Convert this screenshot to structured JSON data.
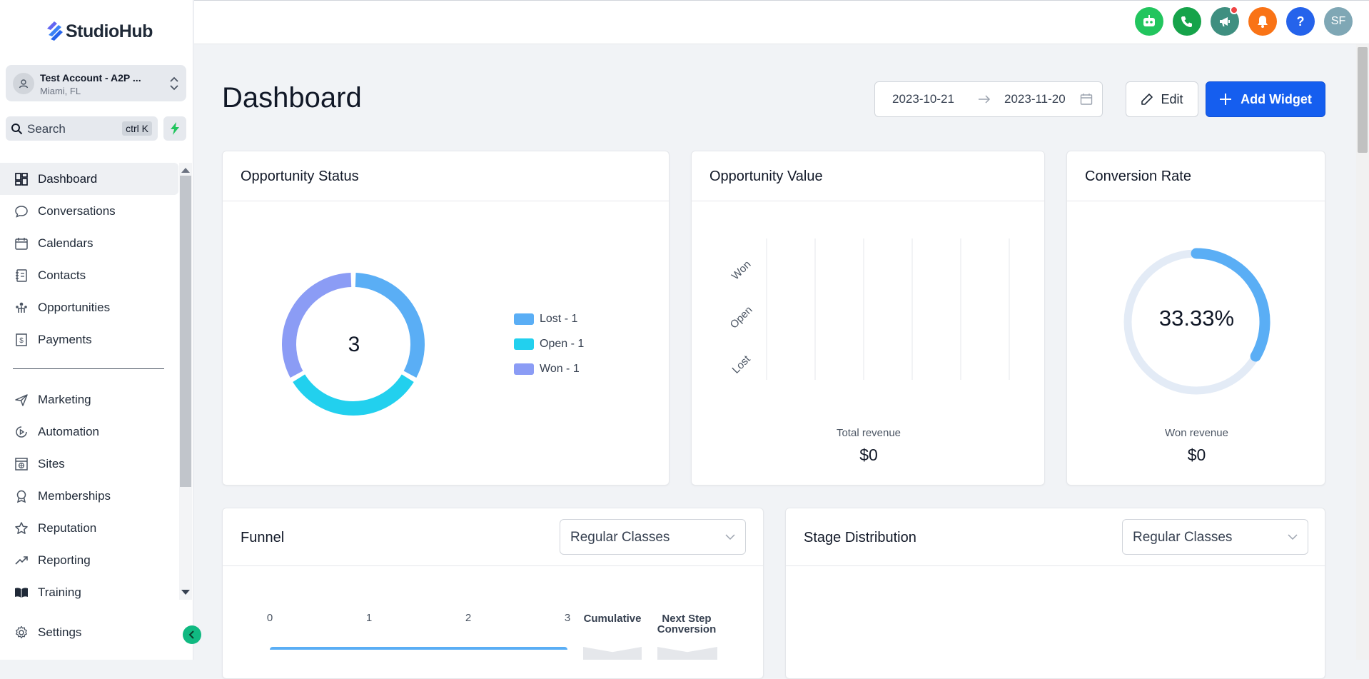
{
  "app": {
    "name": "StudioHub"
  },
  "account": {
    "name": "Test Account - A2P ...",
    "location": "Miami, FL"
  },
  "search": {
    "placeholder": "Search",
    "shortcut": "ctrl K"
  },
  "sidebar": {
    "items_top": [
      {
        "label": "Dashboard",
        "icon": "dashboard-icon",
        "active": true
      },
      {
        "label": "Conversations",
        "icon": "chat-bubble-icon"
      },
      {
        "label": "Calendars",
        "icon": "calendar-icon"
      },
      {
        "label": "Contacts",
        "icon": "contacts-book-icon"
      },
      {
        "label": "Opportunities",
        "icon": "opportunities-icon"
      },
      {
        "label": "Payments",
        "icon": "dollar-document-icon"
      }
    ],
    "items_bottom": [
      {
        "label": "Marketing",
        "icon": "send-icon"
      },
      {
        "label": "Automation",
        "icon": "automation-icon"
      },
      {
        "label": "Sites",
        "icon": "globe-window-icon"
      },
      {
        "label": "Memberships",
        "icon": "badge-icon"
      },
      {
        "label": "Reputation",
        "icon": "star-icon"
      },
      {
        "label": "Reporting",
        "icon": "trend-line-icon"
      },
      {
        "label": "Training",
        "icon": "book-icon"
      }
    ],
    "settings": {
      "label": "Settings",
      "icon": "gear-icon"
    }
  },
  "topbar": {
    "icons": [
      {
        "name": "ai-bot-icon",
        "color": "#22c55e"
      },
      {
        "name": "phone-icon",
        "color": "#16a34a"
      },
      {
        "name": "megaphone-icon",
        "color": "#3f8f80",
        "badge": true
      },
      {
        "name": "bell-icon",
        "color": "#f97316"
      },
      {
        "name": "help-icon",
        "color": "#2563eb",
        "text": "?"
      },
      {
        "name": "user-avatar",
        "color": "#7fa7b5",
        "text": "SF"
      }
    ]
  },
  "main": {
    "title": "Dashboard",
    "date_start": "2023-10-21",
    "date_end": "2023-11-20",
    "edit_label": "Edit",
    "add_widget_label": "Add Widget"
  },
  "cards": {
    "opportunity_status": {
      "title": "Opportunity Status",
      "total": "3",
      "legend": [
        {
          "label": "Lost - 1",
          "color": "#5aaef5"
        },
        {
          "label": "Open - 1",
          "color": "#22d0ee"
        },
        {
          "label": "Won - 1",
          "color": "#8b9cf5"
        }
      ]
    },
    "opportunity_value": {
      "title": "Opportunity Value",
      "caption": "Total revenue",
      "value": "$0"
    },
    "conversion_rate": {
      "title": "Conversion Rate",
      "percent_label": "33.33%",
      "caption": "Won revenue",
      "value": "$0"
    },
    "funnel": {
      "title": "Funnel",
      "select": "Regular Classes",
      "ticks": [
        "0",
        "1",
        "2",
        "3"
      ],
      "col_cumulative": "Cumulative",
      "col_next_step_line1": "Next Step",
      "col_next_step_line2": "Conversion"
    },
    "stage_distribution": {
      "title": "Stage Distribution",
      "select": "Regular Classes"
    }
  },
  "chart_data": [
    {
      "type": "pie",
      "title": "Opportunity Status",
      "categories": [
        "Lost",
        "Open",
        "Won"
      ],
      "values": [
        1,
        1,
        1
      ],
      "colors": [
        "#5aaef5",
        "#22d0ee",
        "#8b9cf5"
      ],
      "center_label": "3",
      "legend": "right"
    },
    {
      "type": "bar",
      "title": "Opportunity Value",
      "orientation": "horizontal",
      "categories": [
        "Won",
        "Open",
        "Lost"
      ],
      "values": [
        0,
        0,
        0
      ],
      "x_ticks": [
        "$0",
        "$0.2",
        "$0.4",
        "$0.6",
        "$0.8",
        "$1"
      ],
      "xlim": [
        0,
        1
      ],
      "grid": true
    },
    {
      "type": "pie",
      "title": "Conversion Rate",
      "values": [
        33.33,
        66.67
      ],
      "colors": [
        "#5aaef5",
        "#e3ebf6"
      ],
      "center_label": "33.33%"
    },
    {
      "type": "bar",
      "title": "Funnel",
      "orientation": "horizontal",
      "x_ticks": [
        "0",
        "1",
        "2",
        "3"
      ],
      "xlim": [
        0,
        3
      ],
      "values": [
        3
      ]
    }
  ]
}
